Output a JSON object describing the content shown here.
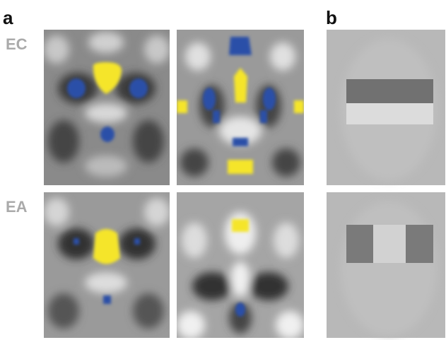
{
  "panel_labels": [
    "a",
    "b"
  ],
  "row_labels": [
    "EC",
    "EA"
  ]
}
